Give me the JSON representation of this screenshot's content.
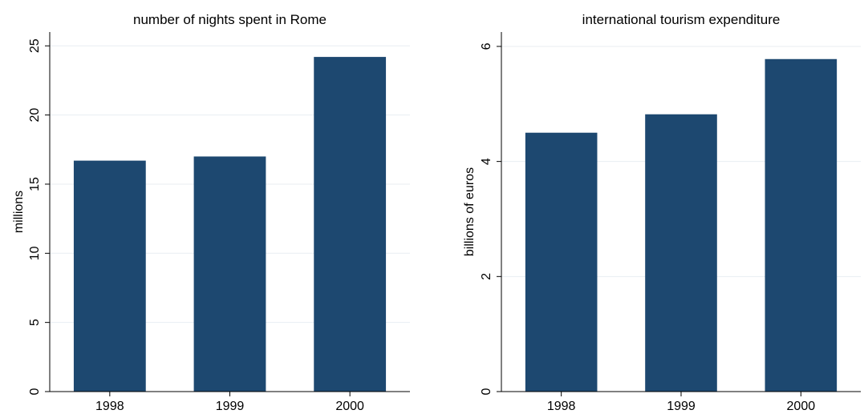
{
  "chart_data": [
    {
      "type": "bar",
      "title": "number of nights spent in Rome",
      "xlabel": "",
      "ylabel": "millions",
      "categories": [
        "1998",
        "1999",
        "2000"
      ],
      "values": [
        16.7,
        17.0,
        24.2
      ],
      "ylim": [
        0,
        26
      ],
      "yticks": [
        0,
        5,
        10,
        15,
        20,
        25
      ],
      "ytick_labels": [
        "0",
        "5",
        "10",
        "15",
        "20",
        "25"
      ],
      "grid": true,
      "bar_color": "#1d4870"
    },
    {
      "type": "bar",
      "title": "international tourism expenditure",
      "xlabel": "",
      "ylabel": "billions of euros",
      "categories": [
        "1998",
        "1999",
        "2000"
      ],
      "values": [
        4.5,
        4.82,
        5.78
      ],
      "ylim": [
        0,
        6.25
      ],
      "yticks": [
        0,
        2,
        4,
        6
      ],
      "ytick_labels": [
        "0",
        "2",
        "4",
        "6"
      ],
      "grid": true,
      "bar_color": "#1d4870"
    }
  ]
}
